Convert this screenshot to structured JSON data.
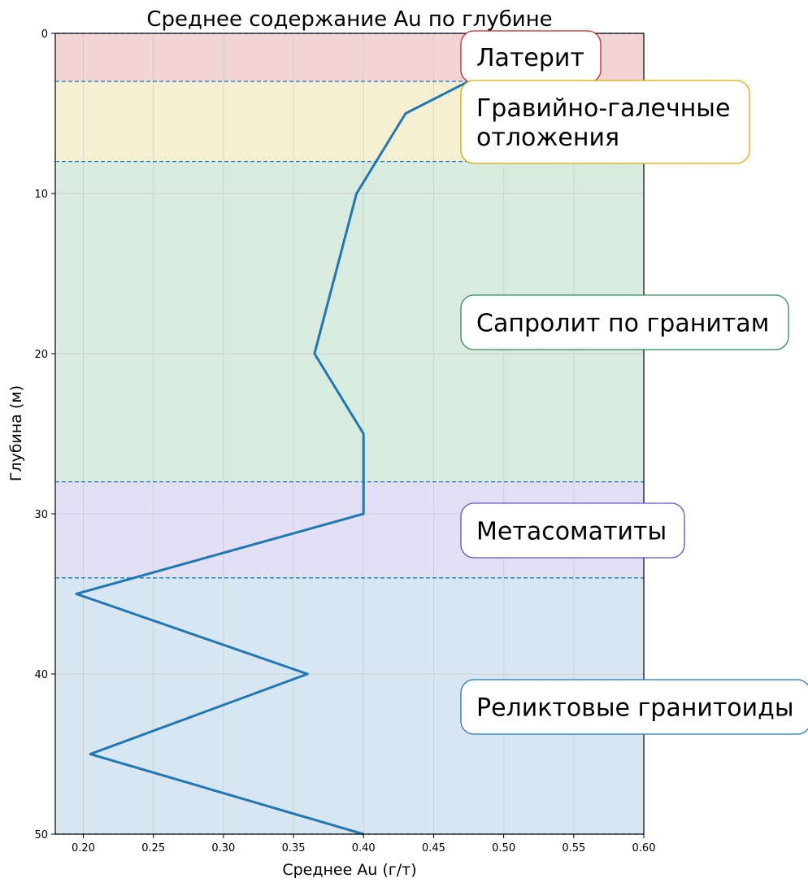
{
  "chart_data": {
    "type": "line",
    "title": "Среднее содержание Au по глубине",
    "xlabel": "Среднее Au (г/т)",
    "ylabel": "Глубина (м)",
    "xlim": [
      0.18,
      0.6
    ],
    "ylim": [
      0,
      50
    ],
    "y_inverted": true,
    "x_ticks": [
      "0.20",
      "0.25",
      "0.30",
      "0.35",
      "0.40",
      "0.45",
      "0.50",
      "0.55",
      "0.60"
    ],
    "x_tick_values": [
      0.2,
      0.25,
      0.3,
      0.35,
      0.4,
      0.45,
      0.5,
      0.55,
      0.6
    ],
    "y_ticks": [
      "0",
      "10",
      "20",
      "30",
      "40",
      "50"
    ],
    "y_tick_values": [
      0,
      10,
      20,
      30,
      40,
      50
    ],
    "grid": true,
    "line_color": "#1f77b4",
    "series": [
      {
        "points": [
          {
            "x": 0.475,
            "y": 3
          },
          {
            "x": 0.43,
            "y": 5
          },
          {
            "x": 0.395,
            "y": 10
          },
          {
            "x": 0.365,
            "y": 20
          },
          {
            "x": 0.4,
            "y": 25
          },
          {
            "x": 0.4,
            "y": 30
          },
          {
            "x": 0.195,
            "y": 35
          },
          {
            "x": 0.36,
            "y": 40
          },
          {
            "x": 0.205,
            "y": 45
          },
          {
            "x": 0.4,
            "y": 50
          }
        ]
      }
    ],
    "zones": [
      {
        "label": "Латерит",
        "from": 0,
        "to": 3,
        "fill": "#f2d4d4",
        "border": "#c62828"
      },
      {
        "label": "Гравийно-галечные отложения",
        "label_lines": [
          "Гравийно-галечные",
          "отложения"
        ],
        "from": 3,
        "to": 8,
        "fill": "#f6f0d3",
        "border": "#d4a800"
      },
      {
        "label": "Сапролит по гранитам",
        "from": 8,
        "to": 28,
        "fill": "#d9ebdf",
        "border": "#2e8b57"
      },
      {
        "label": "Метасоматиты",
        "from": 28,
        "to": 34,
        "fill": "#e3e0f5",
        "border": "#5e4fc0"
      },
      {
        "label": "Реликтовые гранитоиды",
        "from": 34,
        "to": 50,
        "fill": "#d8e6f2",
        "border": "#1f77b4"
      }
    ],
    "boundary_color": "#1f77b4"
  }
}
